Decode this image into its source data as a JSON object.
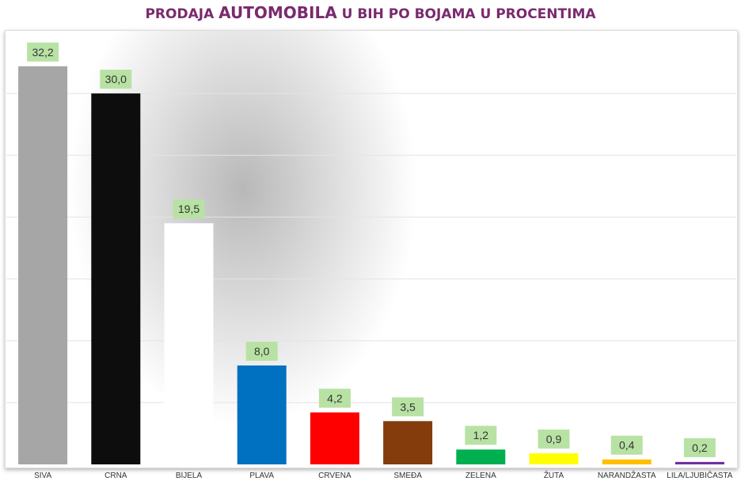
{
  "title": {
    "part1": "PRODAJA ",
    "part2": "AUTOMOBILA",
    "part3": " U BIH PO BOJAMA U PROCENTIMA"
  },
  "chart_data": {
    "type": "bar",
    "title": "PRODAJA AUTOMOBILA U BIH PO BOJAMA U PROCENTIMA",
    "categories": [
      "SIVA",
      "CRNA",
      "BIJELA",
      "PLAVA",
      "CRVENA",
      "SMEĐA",
      "ZELENA",
      "ŽUTA",
      "NARANDŽASTA",
      "LILA/LJUBIČASTA"
    ],
    "values": [
      32.2,
      30.0,
      19.5,
      8.0,
      4.2,
      3.5,
      1.2,
      0.9,
      0.4,
      0.2
    ],
    "data_labels": [
      "32,2",
      "30,0",
      "19,5",
      "8,0",
      "4,2",
      "3,5",
      "1,2",
      "0,9",
      "0,4",
      "0,2"
    ],
    "colors": [
      "#a6a6a6",
      "#0d0d0d",
      "#ffffff",
      "#0070c0",
      "#ff0000",
      "#843c0c",
      "#00b050",
      "#ffff00",
      "#ffc000",
      "#7030a0"
    ],
    "label_bg": "#b8e2a4",
    "ylim": [
      0,
      35
    ],
    "grid": true,
    "xlabel": "",
    "ylabel": ""
  }
}
